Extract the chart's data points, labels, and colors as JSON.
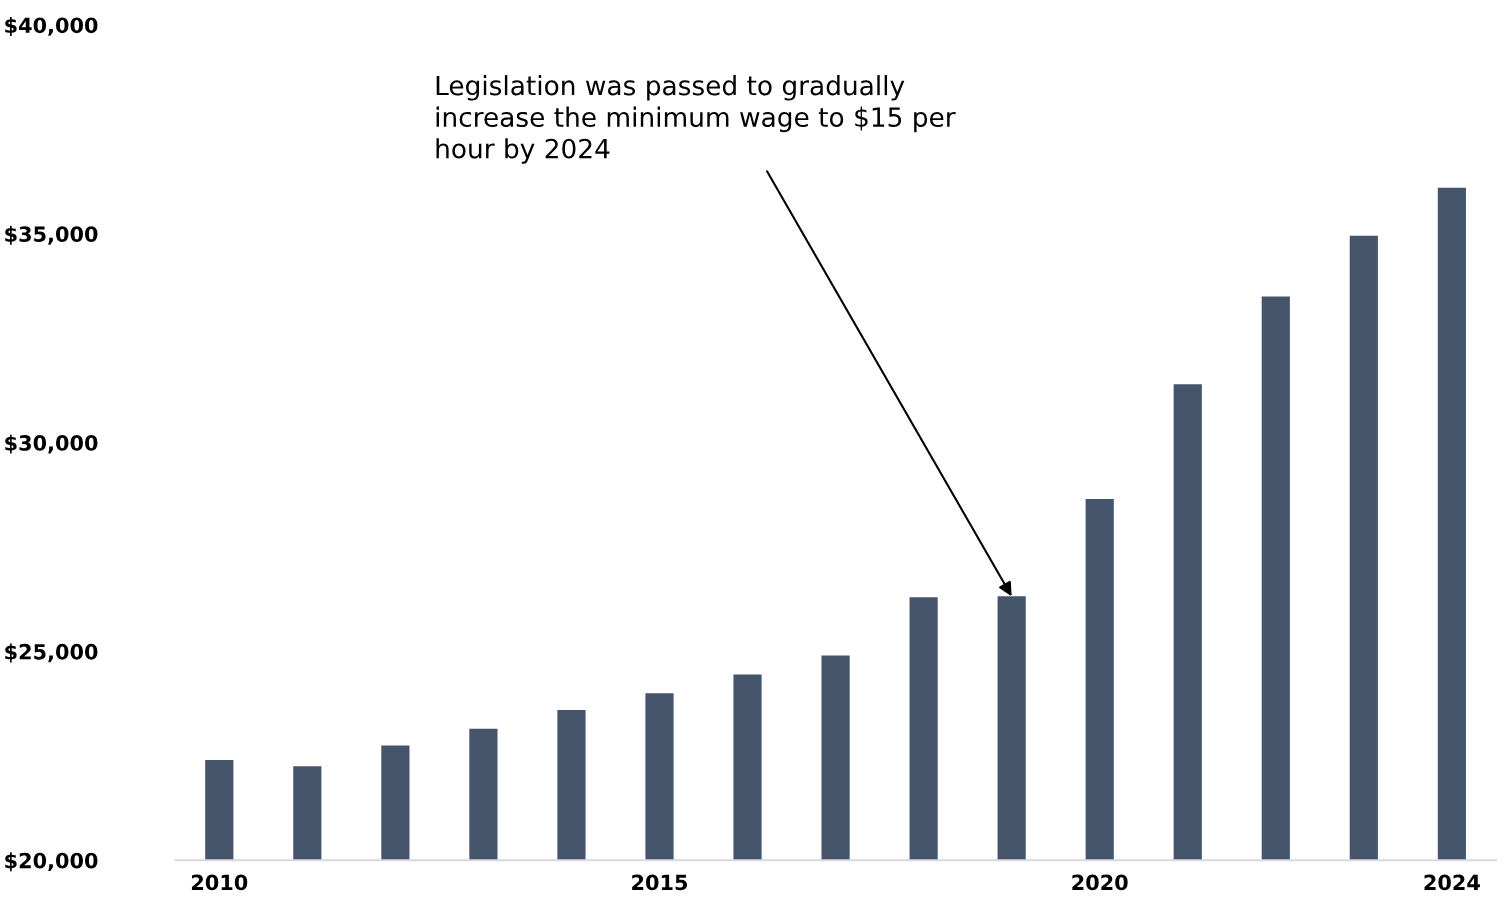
{
  "chart_data": {
    "type": "bar",
    "x": [
      2010,
      2011,
      2012,
      2013,
      2014,
      2015,
      2016,
      2017,
      2018,
      2019,
      2020,
      2021,
      2022,
      2023,
      2024
    ],
    "values": [
      22400,
      22250,
      22750,
      23150,
      23600,
      24000,
      24450,
      24900,
      26300,
      26320,
      28650,
      31400,
      33500,
      34950,
      36100
    ],
    "color": "#44546a",
    "xlim": [
      2009.5,
      2024.5
    ],
    "xticks": [
      2010,
      2015,
      2020,
      2024
    ],
    "ylim": [
      20000,
      40000
    ],
    "yticks": [
      {
        "value": 20000,
        "label": "$20,000"
      },
      {
        "value": 25000,
        "label": "$25,000"
      },
      {
        "value": 30000,
        "label": "$30,000"
      },
      {
        "value": 35000,
        "label": "$35,000"
      },
      {
        "value": 40000,
        "label": "$40,000"
      }
    ],
    "grid": false,
    "legend": false,
    "annotations": [
      {
        "text": "Legislation was passed to gradually\nincrease the minimum wage to $15 per\nhour by 2024",
        "x": 2019,
        "y": 26320
      }
    ]
  }
}
